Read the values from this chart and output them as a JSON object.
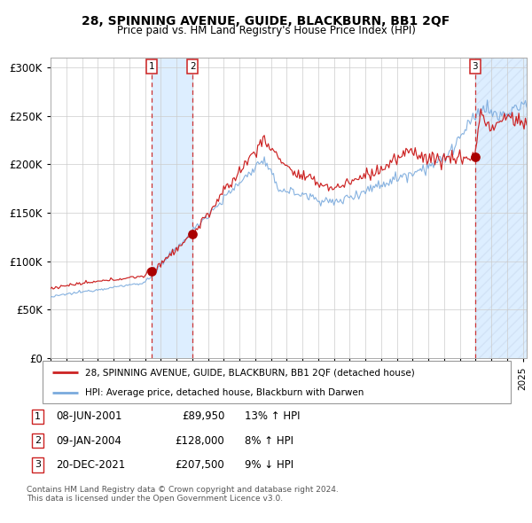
{
  "title": "28, SPINNING AVENUE, GUIDE, BLACKBURN, BB1 2QF",
  "subtitle": "Price paid vs. HM Land Registry's House Price Index (HPI)",
  "legend_line1": "28, SPINNING AVENUE, GUIDE, BLACKBURN, BB1 2QF (detached house)",
  "legend_line2": "HPI: Average price, detached house, Blackburn with Darwen",
  "sale1_date": "08-JUN-2001",
  "sale1_price": 89950,
  "sale1_pct": "13% ↑ HPI",
  "sale2_date": "09-JAN-2004",
  "sale2_price": 128000,
  "sale2_pct": "8% ↑ HPI",
  "sale3_date": "20-DEC-2021",
  "sale3_price": 207500,
  "sale3_pct": "9% ↓ HPI",
  "footnote": "Contains HM Land Registry data © Crown copyright and database right 2024.\nThis data is licensed under the Open Government Licence v3.0.",
  "hpi_line_color": "#7aaadd",
  "price_line_color": "#cc2222",
  "sale_dot_color": "#aa0000",
  "vline_color": "#cc3333",
  "shade_color": "#ddeeff",
  "grid_color": "#cccccc",
  "bg_color": "#f8f8f8",
  "ylim": [
    0,
    310000
  ],
  "yticks": [
    0,
    50000,
    100000,
    150000,
    200000,
    250000,
    300000
  ],
  "sale1_year": 2001.44,
  "sale2_year": 2004.03,
  "sale3_year": 2021.97,
  "xmin": 1995.0,
  "xmax": 2025.25
}
